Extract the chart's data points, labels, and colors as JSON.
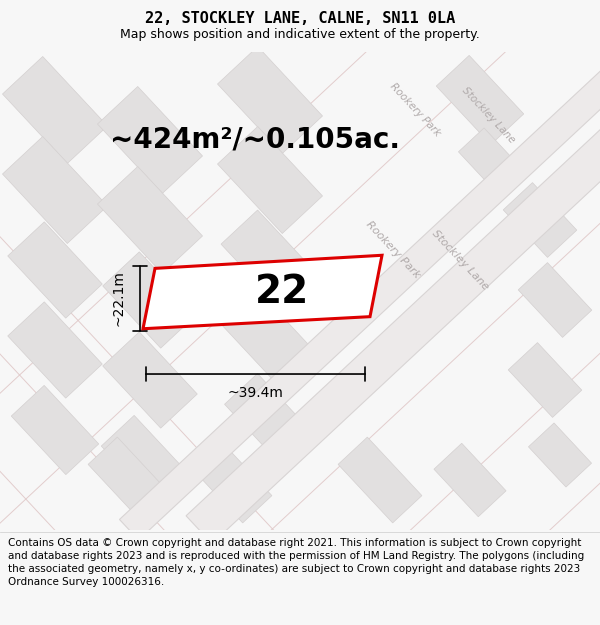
{
  "title": "22, STOCKLEY LANE, CALNE, SN11 0LA",
  "subtitle": "Map shows position and indicative extent of the property.",
  "area_text": "~424m²/~0.105ac.",
  "number_label": "22",
  "dim_width": "~39.4m",
  "dim_height": "~22.1m",
  "footer": "Contains OS data © Crown copyright and database right 2021. This information is subject to Crown copyright and database rights 2023 and is reproduced with the permission of HM Land Registry. The polygons (including the associated geometry, namely x, y co-ordinates) are subject to Crown copyright and database rights 2023 Ordnance Survey 100026316.",
  "bg_color": "#f7f7f7",
  "map_bg": "#eeecec",
  "block_color": "#e2e0e0",
  "block_edge": "#d4d0d0",
  "road_band_color": "#e8e4e4",
  "road_line_color": "#e0c8c8",
  "red_color": "#dd0000",
  "gray_road_color": "#d8d4d4",
  "title_fontsize": 11,
  "subtitle_fontsize": 9,
  "area_fontsize": 20,
  "number_fontsize": 28,
  "dim_fontsize": 10,
  "footer_fontsize": 7.5,
  "road_label_color": "#b0aaaa",
  "road_label_size": 8
}
